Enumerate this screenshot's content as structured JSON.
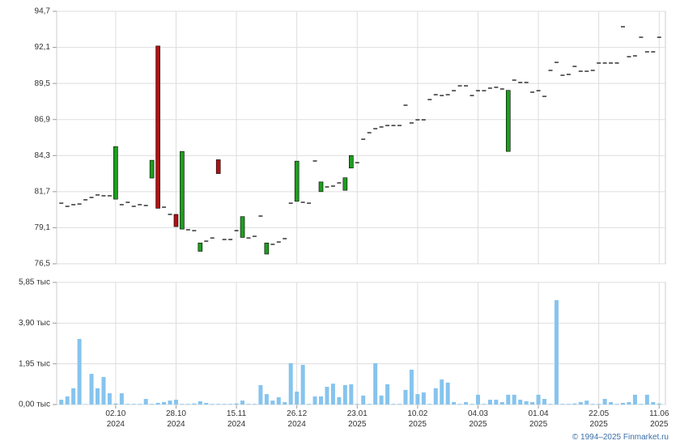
{
  "chart_data": [
    {
      "type": "candlestick",
      "open": [
        80.87,
        80.64,
        80.76,
        80.81,
        81.11,
        81.28,
        81.46,
        81.4,
        81.4,
        81.16,
        80.76,
        80.93,
        80.64,
        80.76,
        80.7,
        82.68,
        92.2,
        80.58,
        80.06,
        80.06,
        79.0,
        78.95,
        78.89,
        77.4,
        78.13,
        78.36,
        84.0,
        78.25,
        78.25,
        78.89,
        78.4,
        78.36,
        78.48,
        79.94,
        77.2,
        77.9,
        78.07,
        78.31,
        80.87,
        81.0,
        80.93,
        80.87,
        83.91,
        81.7,
        82.04,
        82.1,
        82.33,
        81.8,
        83.4,
        83.79,
        85.48,
        85.95,
        86.24,
        86.36,
        86.47,
        86.47,
        86.47,
        87.93,
        86.65,
        86.88,
        86.88,
        88.34,
        88.69,
        88.63,
        88.69,
        88.98,
        89.33,
        89.33,
        88.63,
        88.98,
        88.98,
        89.16,
        89.22,
        89.1,
        84.6,
        89.74,
        89.57,
        89.57,
        88.87,
        88.98,
        88.57,
        90.44,
        91.02,
        90.09,
        90.15,
        90.73,
        90.38,
        90.38,
        90.44,
        90.97,
        90.97,
        90.97,
        90.97,
        93.59,
        91.43,
        91.49,
        92.83,
        91.78,
        91.78,
        92.83
      ],
      "close": [
        80.87,
        80.64,
        80.76,
        80.81,
        81.11,
        81.28,
        81.46,
        81.4,
        81.4,
        84.95,
        80.76,
        80.93,
        80.64,
        80.76,
        80.7,
        83.96,
        80.5,
        80.58,
        80.06,
        79.18,
        84.6,
        78.95,
        78.89,
        78.0,
        78.13,
        78.36,
        83.0,
        78.25,
        78.25,
        78.89,
        79.9,
        78.36,
        78.48,
        79.94,
        78.0,
        77.9,
        78.07,
        78.31,
        80.87,
        83.9,
        80.93,
        80.87,
        83.91,
        82.4,
        82.04,
        82.1,
        82.33,
        82.7,
        84.3,
        83.79,
        85.48,
        85.95,
        86.24,
        86.36,
        86.47,
        86.47,
        86.47,
        87.93,
        86.65,
        86.88,
        86.88,
        88.34,
        88.69,
        88.63,
        88.69,
        88.98,
        89.33,
        89.33,
        88.63,
        88.98,
        88.98,
        89.16,
        89.22,
        89.1,
        89.0,
        89.74,
        89.57,
        89.57,
        88.87,
        88.98,
        88.57,
        90.44,
        91.02,
        90.09,
        90.15,
        90.73,
        90.38,
        90.38,
        90.44,
        90.97,
        90.97,
        90.97,
        90.97,
        93.59,
        91.43,
        91.49,
        92.83,
        91.78,
        91.78,
        92.83
      ],
      "up_color": "#1e9e1e",
      "down_color": "#b01212",
      "xlim": [
        -0.5,
        99.5
      ],
      "ylim": [
        76.5,
        94.7
      ],
      "yticks": [
        {
          "value": 76.5,
          "label": "76,5"
        },
        {
          "value": 79.1,
          "label": "79,1"
        },
        {
          "value": 81.7,
          "label": "81,7"
        },
        {
          "value": 84.3,
          "label": "84,3"
        },
        {
          "value": 86.9,
          "label": "86,9"
        },
        {
          "value": 89.5,
          "label": "89,5"
        },
        {
          "value": 92.1,
          "label": "92,1"
        },
        {
          "value": 94.7,
          "label": "94,7"
        }
      ],
      "grid": true
    },
    {
      "type": "bar",
      "values": [
        0.23,
        0.39,
        0.78,
        3.14,
        0.02,
        1.47,
        0.78,
        1.32,
        0.54,
        0.05,
        0.54,
        0.03,
        0.03,
        0.03,
        0.27,
        0.03,
        0.08,
        0.12,
        0.19,
        0.23,
        0.03,
        0.03,
        0.05,
        0.16,
        0.08,
        0.03,
        0.03,
        0.03,
        0.03,
        0.05,
        0.19,
        0.03,
        0.03,
        0.93,
        0.5,
        0.19,
        0.35,
        0.12,
        1.98,
        0.62,
        1.9,
        0.03,
        0.39,
        0.39,
        0.85,
        1.0,
        0.35,
        0.93,
        0.97,
        0.03,
        0.43,
        0.03,
        1.98,
        0.43,
        0.97,
        0.03,
        0.03,
        0.7,
        1.67,
        0.5,
        0.58,
        0.03,
        0.78,
        1.2,
        1.05,
        0.12,
        0.03,
        0.12,
        0.03,
        0.47,
        0.03,
        0.23,
        0.23,
        0.12,
        0.47,
        0.47,
        0.23,
        0.16,
        0.12,
        0.47,
        0.27,
        0.03,
        5.0,
        0.03,
        0.03,
        0.05,
        0.12,
        0.19,
        0.03,
        0.03,
        0.27,
        0.12,
        0.03,
        0.08,
        0.12,
        0.47,
        0.03,
        0.47,
        0.12,
        0.05
      ],
      "color": "#86c4ee",
      "xlim": [
        -0.5,
        99.5
      ],
      "xticks": [
        {
          "value": 9,
          "label": "02.10\n2024"
        },
        {
          "value": 19,
          "label": "28.10\n2024"
        },
        {
          "value": 29,
          "label": "15.11\n2024"
        },
        {
          "value": 39,
          "label": "26.12\n2024"
        },
        {
          "value": 49,
          "label": "23.01\n2025"
        },
        {
          "value": 59,
          "label": "10.02\n2025"
        },
        {
          "value": 69,
          "label": "04.03\n2025"
        },
        {
          "value": 79,
          "label": "01.04\n2025"
        },
        {
          "value": 89,
          "label": "22.05\n2025"
        },
        {
          "value": 99,
          "label": "11.06\n2025"
        }
      ],
      "ylim": [
        0,
        5.85
      ],
      "yticks": [
        {
          "value": 0,
          "label": "0,00 тыс"
        },
        {
          "value": 1.95,
          "label": "1,95 тыс"
        },
        {
          "value": 3.9,
          "label": "3,90 тыс"
        },
        {
          "value": 5.85,
          "label": "5,85 тыс"
        }
      ],
      "grid": true
    }
  ],
  "credit": "© 1994–2025 Finmarket.ru"
}
